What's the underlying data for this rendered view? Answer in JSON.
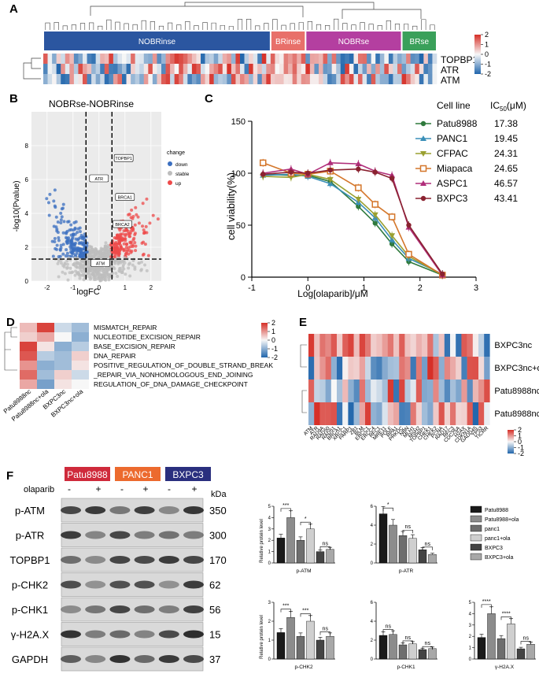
{
  "panels": {
    "A": {
      "label": "A",
      "groups": [
        {
          "name": "NOBRinse",
          "color": "#2b56a0"
        },
        {
          "name": "BRinse",
          "color": "#e8706a"
        },
        {
          "name": "NOBRse",
          "color": "#b43fa0"
        },
        {
          "name": "BRse",
          "color": "#3aa05a"
        }
      ],
      "rows": [
        "TOPBP1",
        "ATR",
        "ATM"
      ],
      "colorbar_ticks": [
        "2",
        "1",
        "0",
        "-1",
        "-2"
      ]
    },
    "B": {
      "label": "B",
      "title": "NOBRse-NOBRinse",
      "xlabel": "logFC",
      "ylabel": "-log10(Pvalue)",
      "xticks": [
        "-2",
        "-1",
        "0",
        "1",
        "2"
      ],
      "yticks": [
        "0",
        "2",
        "4",
        "6",
        "8"
      ],
      "gene_labels": [
        "TOPBP1",
        "ATR",
        "BRCA1",
        "BRCA2",
        "ATM"
      ],
      "legend_title": "change",
      "legend": [
        {
          "name": "down",
          "color": "#3b6fc0"
        },
        {
          "name": "stable",
          "color": "#bdbdbd"
        },
        {
          "name": "up",
          "color": "#ee4a4a"
        }
      ]
    },
    "C": {
      "label": "C",
      "xlabel": "Log[olaparib]/μM",
      "ylabel": "cell viability(%)",
      "legend_header_line": "Cell line",
      "legend_header_ic": "IC",
      "legend_header_sub": "50",
      "legend_header_unit": "(μM)",
      "chart_data": {
        "type": "line",
        "x": [
          -0.8,
          -0.3,
          0,
          0.4,
          0.9,
          1.2,
          1.5,
          1.8,
          2.4
        ],
        "xlim": [
          -1,
          3
        ],
        "ylim": [
          0,
          150
        ],
        "xticks": [
          "-1",
          "0",
          "1",
          "2",
          "3"
        ],
        "yticks": [
          "0",
          "50",
          "100",
          "150"
        ],
        "series": [
          {
            "name": "Patu8988",
            "ic50": "17.38",
            "color": "#2f7a3c",
            "marker": "circle",
            "values": [
              99,
              98,
              98,
              92,
              68,
              52,
              32,
              15,
              2
            ]
          },
          {
            "name": "PANC1",
            "ic50": "19.45",
            "color": "#3a8fb8",
            "marker": "triangle",
            "values": [
              98,
              99,
              97,
              90,
              72,
              57,
              36,
              18,
              3
            ]
          },
          {
            "name": "CFPAC",
            "ic50": "24.31",
            "color": "#9aa030",
            "marker": "tri-down",
            "values": [
              97,
              96,
              99,
              94,
              75,
              60,
              40,
              20,
              2
            ]
          },
          {
            "name": "Miapaca",
            "ic50": "24.65",
            "color": "#d4762a",
            "marker": "square",
            "values": [
              110,
              100,
              99,
              102,
              86,
              70,
              58,
              22,
              2
            ]
          },
          {
            "name": "ASPC1",
            "ic50": "46.57",
            "color": "#b02e7a",
            "marker": "triangle",
            "values": [
              100,
              104,
              99,
              110,
              109,
              102,
              98,
              48,
              2
            ]
          },
          {
            "name": "BXPC3",
            "ic50": "43.41",
            "color": "#8a2230",
            "marker": "circle",
            "values": [
              99,
              101,
              100,
              103,
              104,
              101,
              95,
              50,
              3
            ]
          }
        ]
      }
    },
    "D": {
      "label": "D",
      "terms": [
        "MISMATCH_REPAIR",
        "NUCLEOTIDE_EXCISION_REPAIR",
        "BASE_EXCISION_REPAIR",
        "DNA_REPAIR",
        "POSITIVE_REGULATION_OF_DOUBLE_STRAND_BREAK",
        "_REPAIR_VIA_NONHOMOLOGOUS_END_JOINING",
        "REGULATION_OF_DNA_DAMAGE_CHECKPOINT"
      ],
      "columns": [
        "Patu8988nc",
        "Patu8988nc+ola",
        "BXPC3nc",
        "BXPC3nc+ola"
      ],
      "colorbar_ticks": [
        "2",
        "1",
        "0",
        "-1",
        "-2"
      ]
    },
    "E": {
      "label": "E",
      "rows": [
        "BXPC3nc",
        "BXPC3nc+ola",
        "Patu8988nc",
        "Patu8988nc+ola"
      ],
      "genes": [
        "ATM",
        "ATR",
        "RAD9A",
        "RAD50",
        "RAD51",
        "BRCA1",
        "XRCC1",
        "PARP1",
        "ZB1",
        "BLM",
        "ERCC1",
        "ERCC4",
        "RFC1",
        "MRE11",
        "POLE",
        "RPA1",
        "PRKDC",
        "NBN",
        "MLH1",
        "MSH2",
        "TOPBP1",
        "CHEK1",
        "CHEK2",
        "PCNA",
        "RAD17",
        "RFC3",
        "CDC25A",
        "H2AX",
        "CDKN1A",
        "GADD45",
        "TP53",
        "TICRR"
      ],
      "colorbar_ticks": [
        "2",
        "1",
        "0",
        "-1",
        "-2"
      ]
    },
    "F": {
      "label": "F",
      "cell_lines": [
        {
          "name": "Patu8988",
          "color": "#cf2a3b"
        },
        {
          "name": "PANC1",
          "color": "#ec6a2e"
        },
        {
          "name": "BXPC3",
          "color": "#2a2f7e"
        }
      ],
      "treatment_label": "olaparib",
      "treatment_marks": [
        "-",
        "+",
        "-",
        "+",
        "-",
        "+"
      ],
      "kda_label": "kDa",
      "blots": [
        {
          "name": "p-ATM",
          "kda": "350"
        },
        {
          "name": "p-ATR",
          "kda": "300"
        },
        {
          "name": "TOPBP1",
          "kda": "170"
        },
        {
          "name": "p-CHK2",
          "kda": "62"
        },
        {
          "name": "p-CHK1",
          "kda": "56"
        },
        {
          "name": "γ-H2A.X",
          "kda": "15"
        },
        {
          "name": "GAPDH",
          "kda": "37"
        }
      ],
      "bar_ylabel": "Relative protein level",
      "bar_legend": [
        "Patu8988",
        "Patu8988+ola",
        "panc1",
        "panc1+ola",
        "BXPC3",
        "BXPC3+ola"
      ],
      "bar_colors": [
        "#1a1a1a",
        "#8c8c8c",
        "#6e6e6e",
        "#cfcfcf",
        "#444444",
        "#a8a8a8"
      ],
      "chart_data": [
        {
          "type": "bar",
          "title": "p-ATM",
          "ylim": [
            0,
            5
          ],
          "yticks": [
            "0",
            "1",
            "2",
            "3",
            "4",
            "5"
          ],
          "values": [
            2.2,
            4.0,
            2.0,
            3.0,
            1.0,
            1.2
          ],
          "sig": [
            "***",
            "*",
            "ns"
          ]
        },
        {
          "type": "bar",
          "title": "p-ATR",
          "ylim": [
            0,
            6
          ],
          "yticks": [
            "0",
            "2",
            "4",
            "6"
          ],
          "values": [
            5.2,
            4.0,
            2.9,
            2.6,
            1.4,
            0.9
          ],
          "sig": [
            "*",
            "ns",
            "ns"
          ]
        },
        {
          "type": "bar",
          "title": "p-CHK2",
          "ylim": [
            0,
            3
          ],
          "yticks": [
            "0",
            "1",
            "2",
            "3"
          ],
          "values": [
            1.4,
            2.2,
            1.2,
            2.0,
            1.0,
            1.2
          ],
          "sig": [
            "***",
            "***",
            "ns"
          ]
        },
        {
          "type": "bar",
          "title": "p-CHK1",
          "ylim": [
            0,
            6
          ],
          "yticks": [
            "0",
            "2",
            "4",
            "6"
          ],
          "values": [
            2.5,
            2.6,
            1.5,
            1.6,
            1.0,
            1.1
          ],
          "sig": [
            "ns",
            "ns",
            "ns"
          ]
        },
        {
          "type": "bar",
          "title": "γ-H2A.X",
          "ylim": [
            0,
            5
          ],
          "yticks": [
            "0",
            "1",
            "2",
            "3",
            "4",
            "5"
          ],
          "values": [
            1.9,
            4.0,
            1.8,
            3.1,
            0.9,
            1.3
          ],
          "sig": [
            "****",
            "****",
            "ns"
          ]
        }
      ]
    }
  }
}
